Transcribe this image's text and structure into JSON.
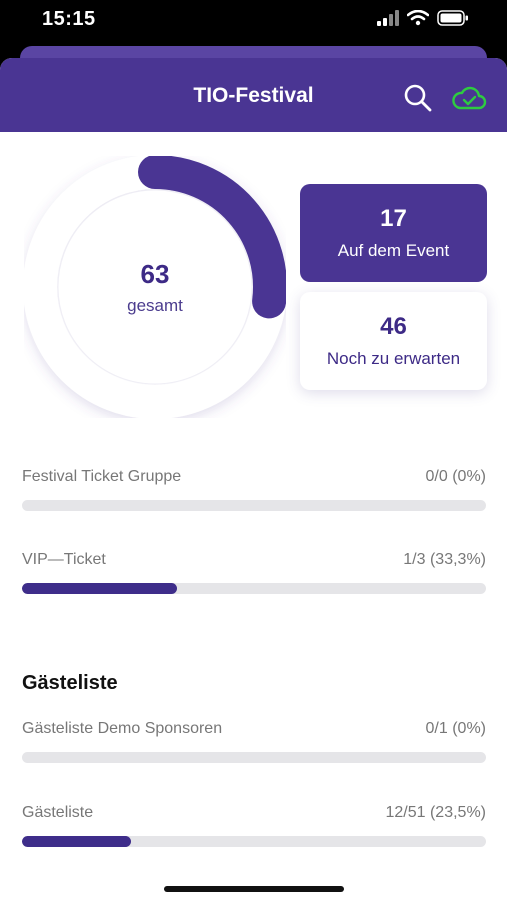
{
  "status": {
    "time": "15:15"
  },
  "header": {
    "title": "TIO-Festival",
    "search_icon": "search-icon",
    "sync_icon": "cloud-check-icon"
  },
  "summary": {
    "total_value": "63",
    "total_label": "gesamt",
    "checked_in_fraction": 0.27,
    "on_event": {
      "value": "17",
      "label": "Auf dem Event"
    },
    "expected": {
      "value": "46",
      "label": "Noch zu erwarten"
    }
  },
  "tickets": [
    {
      "name": "Festival Ticket Gruppe",
      "count": "0/0 (0%)",
      "progress": 0
    },
    {
      "name": "VIP—Ticket",
      "count": "1/3 (33,3%)",
      "progress": 0.333
    }
  ],
  "guestlists": {
    "title": "Gästeliste",
    "items": [
      {
        "name": "Gästeliste Demo Sponsoren",
        "count": "0/1 (0%)",
        "progress": 0
      },
      {
        "name": "Gästeliste",
        "count": "12/51 (23,5%)",
        "progress": 0.235
      }
    ]
  },
  "colors": {
    "primary": "#4a3593",
    "accent_green": "#2ecc40",
    "track": "#e5e5e8"
  }
}
